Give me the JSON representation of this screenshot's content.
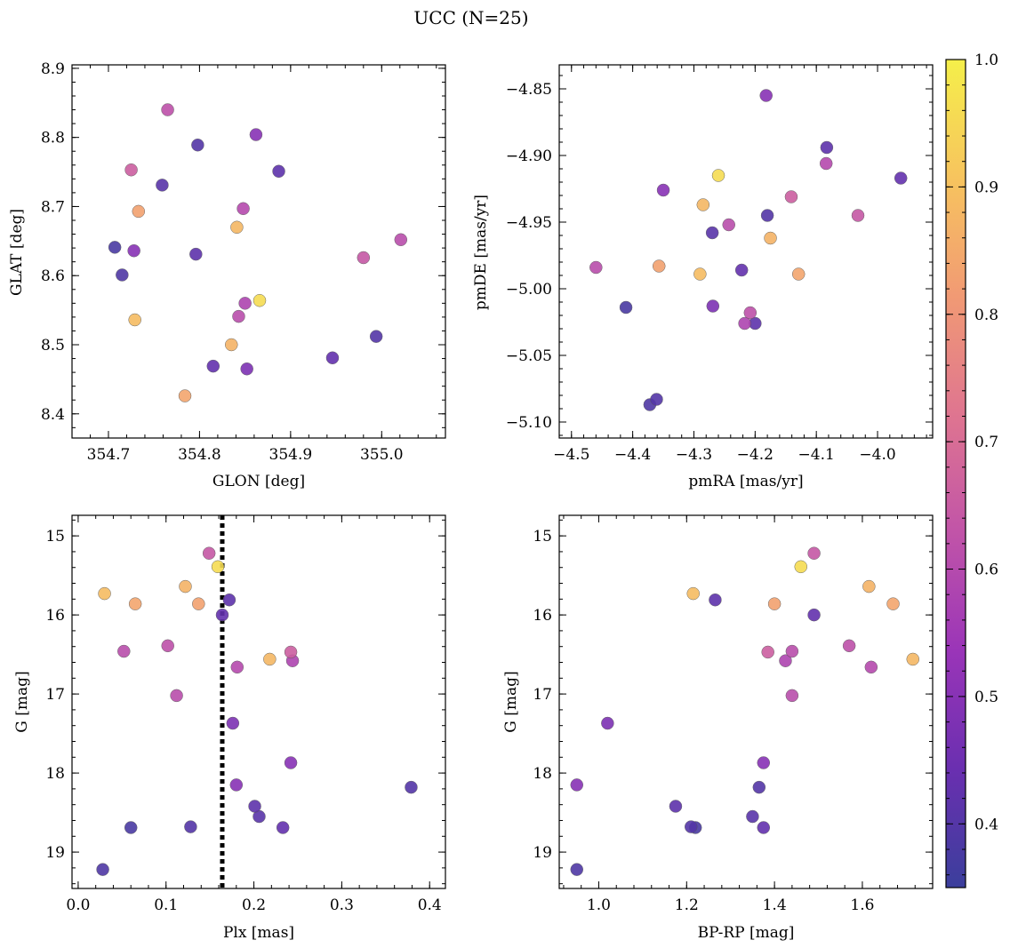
{
  "figure_title": "UCC (N=25)",
  "colorbar": {
    "range": [
      0.35,
      1.0
    ],
    "ticks": [
      0.4,
      0.5,
      0.6,
      0.7,
      0.8,
      0.9,
      1.0
    ],
    "tick_labels": [
      "0.4",
      "0.5",
      "0.6",
      "0.7",
      "0.8",
      "0.9",
      "1.0"
    ],
    "colormap": "plasma",
    "colormap_stops": [
      "#3b3f9c",
      "#6a2fb0",
      "#9a35b8",
      "#c154a8",
      "#df7590",
      "#f19a74",
      "#f7c45e",
      "#f5ef4a"
    ]
  },
  "stars": [
    {
      "glon": 354.707,
      "glat": 8.641,
      "pmra": -4.411,
      "pmde": -5.014,
      "plx": 0.06,
      "g": 18.69,
      "bprp": 1.22,
      "prob": 0.38
    },
    {
      "glon": 354.715,
      "glat": 8.601,
      "pmra": -4.372,
      "pmde": -5.087,
      "plx": 0.028,
      "g": 19.22,
      "bprp": 0.95,
      "prob": 0.39
    },
    {
      "glon": 354.725,
      "glat": 8.753,
      "pmra": -4.141,
      "pmde": -4.931,
      "plx": 0.242,
      "g": 16.47,
      "bprp": 1.385,
      "prob": 0.66
    },
    {
      "glon": 354.728,
      "glat": 8.636,
      "pmra": -4.35,
      "pmde": -4.926,
      "plx": 0.18,
      "g": 18.15,
      "bprp": 0.95,
      "prob": 0.5
    },
    {
      "glon": 354.729,
      "glat": 8.536,
      "pmra": -4.29,
      "pmde": -4.989,
      "plx": 0.03,
      "g": 15.73,
      "bprp": 1.215,
      "prob": 0.89
    },
    {
      "glon": 354.733,
      "glat": 8.693,
      "pmra": -4.357,
      "pmde": -4.983,
      "plx": 0.137,
      "g": 15.86,
      "bprp": 1.4,
      "prob": 0.83
    },
    {
      "glon": 354.759,
      "glat": 8.731,
      "pmra": -4.27,
      "pmde": -4.958,
      "plx": 0.206,
      "g": 18.55,
      "bprp": 1.35,
      "prob": 0.41
    },
    {
      "glon": 354.765,
      "glat": 8.84,
      "pmra": -4.208,
      "pmde": -5.018,
      "plx": 0.102,
      "g": 16.39,
      "bprp": 1.57,
      "prob": 0.62
    },
    {
      "glon": 354.784,
      "glat": 8.426,
      "pmra": -4.129,
      "pmde": -4.989,
      "plx": 0.065,
      "g": 15.86,
      "bprp": 1.67,
      "prob": 0.84
    },
    {
      "glon": 354.798,
      "glat": 8.789,
      "pmra": -4.18,
      "pmde": -4.945,
      "plx": 0.128,
      "g": 18.68,
      "bprp": 1.21,
      "prob": 0.4
    },
    {
      "glon": 354.796,
      "glat": 8.631,
      "pmra": -4.2,
      "pmde": -5.026,
      "plx": 0.172,
      "g": 15.81,
      "bprp": 1.265,
      "prob": 0.42
    },
    {
      "glon": 354.815,
      "glat": 8.469,
      "pmra": -4.222,
      "pmde": -4.986,
      "plx": 0.164,
      "g": 16.0,
      "bprp": 1.49,
      "prob": 0.43
    },
    {
      "glon": 354.835,
      "glat": 8.5,
      "pmra": -4.175,
      "pmde": -4.962,
      "plx": 0.122,
      "g": 15.64,
      "bprp": 1.615,
      "prob": 0.87
    },
    {
      "glon": 354.841,
      "glat": 8.67,
      "pmra": -4.285,
      "pmde": -4.937,
      "plx": 0.218,
      "g": 16.56,
      "bprp": 1.715,
      "prob": 0.88
    },
    {
      "glon": 354.843,
      "glat": 8.541,
      "pmra": -4.243,
      "pmde": -4.952,
      "plx": 0.112,
      "g": 17.02,
      "bprp": 1.44,
      "prob": 0.61
    },
    {
      "glon": 354.848,
      "glat": 8.697,
      "pmra": -4.084,
      "pmde": -4.906,
      "plx": 0.181,
      "g": 16.66,
      "bprp": 1.62,
      "prob": 0.6
    },
    {
      "glon": 354.85,
      "glat": 8.56,
      "pmra": -4.217,
      "pmde": -5.026,
      "plx": 0.244,
      "g": 16.58,
      "bprp": 1.425,
      "prob": 0.58
    },
    {
      "glon": 354.852,
      "glat": 8.465,
      "pmra": -4.269,
      "pmde": -5.013,
      "plx": 0.176,
      "g": 17.37,
      "bprp": 1.02,
      "prob": 0.48
    },
    {
      "glon": 354.862,
      "glat": 8.804,
      "pmra": -4.182,
      "pmde": -4.855,
      "plx": 0.242,
      "g": 17.87,
      "bprp": 1.375,
      "prob": 0.5
    },
    {
      "glon": 354.866,
      "glat": 8.564,
      "pmra": -4.26,
      "pmde": -4.915,
      "plx": 0.159,
      "g": 15.39,
      "bprp": 1.46,
      "prob": 0.96
    },
    {
      "glon": 354.887,
      "glat": 8.751,
      "pmra": -4.083,
      "pmde": -4.894,
      "plx": 0.201,
      "g": 18.42,
      "bprp": 1.175,
      "prob": 0.42
    },
    {
      "glon": 354.946,
      "glat": 8.481,
      "pmra": -3.962,
      "pmde": -4.917,
      "plx": 0.233,
      "g": 18.69,
      "bprp": 1.375,
      "prob": 0.43
    },
    {
      "glon": 354.98,
      "glat": 8.626,
      "pmra": -4.032,
      "pmde": -4.945,
      "plx": 0.149,
      "g": 15.22,
      "bprp": 1.49,
      "prob": 0.64
    },
    {
      "glon": 354.994,
      "glat": 8.512,
      "pmra": -4.361,
      "pmde": -5.083,
      "plx": 0.379,
      "g": 18.18,
      "bprp": 1.365,
      "prob": 0.4
    },
    {
      "glon": 355.021,
      "glat": 8.652,
      "pmra": -4.46,
      "pmde": -4.984,
      "plx": 0.052,
      "g": 16.46,
      "bprp": 1.44,
      "prob": 0.61
    }
  ],
  "chart_data": [
    {
      "type": "scatter",
      "title": "",
      "xlabel": "GLON [deg]",
      "ylabel": "GLAT [deg]",
      "x_key": "glon",
      "y_key": "glat",
      "xlim": [
        354.66,
        355.07
      ],
      "ylim": [
        8.365,
        8.905
      ],
      "xticks": [
        354.7,
        354.8,
        354.9,
        355.0
      ],
      "xtick_labels": [
        "354.7",
        "354.8",
        "354.9",
        "355.0"
      ],
      "yticks": [
        8.4,
        8.5,
        8.6,
        8.7,
        8.8,
        8.9
      ],
      "ytick_labels": [
        "8.4",
        "8.5",
        "8.6",
        "8.7",
        "8.8",
        "8.9"
      ],
      "invert_y": false
    },
    {
      "type": "scatter",
      "title": "",
      "xlabel": "pmRA [mas/yr]",
      "ylabel": "pmDE [mas/yr]",
      "x_key": "pmra",
      "y_key": "pmde",
      "xlim": [
        -4.52,
        -3.91
      ],
      "ylim": [
        -5.112,
        -4.832
      ],
      "xticks": [
        -4.5,
        -4.4,
        -4.3,
        -4.2,
        -4.1,
        -4.0
      ],
      "xtick_labels": [
        "−4.5",
        "−4.4",
        "−4.3",
        "−4.2",
        "−4.1",
        "−4.0"
      ],
      "yticks": [
        -5.1,
        -5.05,
        -5.0,
        -4.95,
        -4.9,
        -4.85
      ],
      "ytick_labels": [
        "−5.10",
        "−5.05",
        "−5.00",
        "−4.95",
        "−4.90",
        "−4.85"
      ],
      "invert_y": false
    },
    {
      "type": "scatter",
      "title": "",
      "xlabel": "Plx [mas]",
      "ylabel": "G [mag]",
      "x_key": "plx",
      "y_key": "g",
      "xlim": [
        -0.007,
        0.418
      ],
      "ylim": [
        14.74,
        19.46
      ],
      "xticks": [
        0.0,
        0.1,
        0.2,
        0.3,
        0.4
      ],
      "xtick_labels": [
        "0.0",
        "0.1",
        "0.2",
        "0.3",
        "0.4"
      ],
      "yticks": [
        15,
        16,
        17,
        18,
        19
      ],
      "ytick_labels": [
        "15",
        "16",
        "17",
        "18",
        "19"
      ],
      "invert_y": true,
      "vline": 0.164
    },
    {
      "type": "scatter",
      "title": "",
      "xlabel": "BP-RP [mag]",
      "ylabel": "G [mag]",
      "x_key": "bprp",
      "y_key": "g",
      "xlim": [
        0.91,
        1.76
      ],
      "ylim": [
        14.74,
        19.46
      ],
      "xticks": [
        1.0,
        1.2,
        1.4,
        1.6
      ],
      "xtick_labels": [
        "1.0",
        "1.2",
        "1.4",
        "1.6"
      ],
      "yticks": [
        15,
        16,
        17,
        18,
        19
      ],
      "ytick_labels": [
        "15",
        "16",
        "17",
        "18",
        "19"
      ],
      "invert_y": true
    }
  ]
}
